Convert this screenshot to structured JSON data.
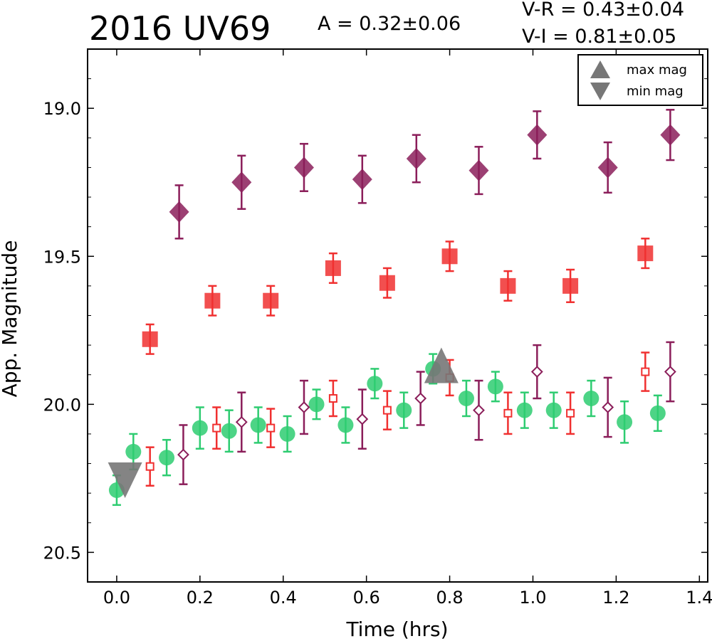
{
  "chart_data": {
    "type": "scatter",
    "title": "2016 UV69",
    "amplitude_text": "A  = 0.32±0.06",
    "color_text": [
      "V-R = 0.43±0.04",
      "V-I  = 0.81±0.05"
    ],
    "xlabel": "Time (hrs)",
    "ylabel": "App. Magnitude",
    "xlim": [
      -0.07,
      1.42
    ],
    "ylim": [
      20.6,
      18.8
    ],
    "y_inverted": true,
    "xticks": [
      "0.0",
      "0.2",
      "0.4",
      "0.6",
      "0.8",
      "1.0",
      "1.2",
      "1.4"
    ],
    "yticks": [
      "19.0",
      "19.5",
      "20.0",
      "20.5"
    ],
    "grid": false,
    "legend_position": "top-right",
    "legend": [
      "max mag",
      "min mag"
    ],
    "series": [
      {
        "role": "green filled circles",
        "color": "#2ecc71",
        "marker": "circle",
        "filled": true,
        "points": [
          {
            "x": 0.0,
            "y": 20.29,
            "err": 0.05
          },
          {
            "x": 0.04,
            "y": 20.16,
            "err": 0.06
          },
          {
            "x": 0.12,
            "y": 20.18,
            "err": 0.06
          },
          {
            "x": 0.2,
            "y": 20.08,
            "err": 0.07
          },
          {
            "x": 0.27,
            "y": 20.09,
            "err": 0.07
          },
          {
            "x": 0.34,
            "y": 20.07,
            "err": 0.06
          },
          {
            "x": 0.41,
            "y": 20.1,
            "err": 0.06
          },
          {
            "x": 0.48,
            "y": 20.0,
            "err": 0.05
          },
          {
            "x": 0.55,
            "y": 20.07,
            "err": 0.06
          },
          {
            "x": 0.62,
            "y": 19.93,
            "err": 0.05
          },
          {
            "x": 0.69,
            "y": 20.02,
            "err": 0.06
          },
          {
            "x": 0.76,
            "y": 19.88,
            "err": 0.05
          },
          {
            "x": 0.84,
            "y": 19.98,
            "err": 0.06
          },
          {
            "x": 0.91,
            "y": 19.94,
            "err": 0.05
          },
          {
            "x": 0.98,
            "y": 20.02,
            "err": 0.06
          },
          {
            "x": 1.05,
            "y": 20.02,
            "err": 0.06
          },
          {
            "x": 1.14,
            "y": 19.98,
            "err": 0.06
          },
          {
            "x": 1.22,
            "y": 20.06,
            "err": 0.07
          },
          {
            "x": 1.3,
            "y": 20.03,
            "err": 0.06
          }
        ]
      },
      {
        "role": "red filled squares",
        "color": "#f03030",
        "marker": "square",
        "filled": true,
        "points": [
          {
            "x": 0.08,
            "y": 19.78,
            "err": 0.05
          },
          {
            "x": 0.23,
            "y": 19.65,
            "err": 0.05
          },
          {
            "x": 0.37,
            "y": 19.65,
            "err": 0.05
          },
          {
            "x": 0.52,
            "y": 19.54,
            "err": 0.05
          },
          {
            "x": 0.65,
            "y": 19.59,
            "err": 0.05
          },
          {
            "x": 0.8,
            "y": 19.5,
            "err": 0.05
          },
          {
            "x": 0.94,
            "y": 19.6,
            "err": 0.05
          },
          {
            "x": 1.09,
            "y": 19.6,
            "err": 0.055
          },
          {
            "x": 1.27,
            "y": 19.49,
            "err": 0.05
          }
        ]
      },
      {
        "role": "purple filled diamonds",
        "color": "#8b1e5a",
        "marker": "diamond",
        "filled": true,
        "points": [
          {
            "x": 0.15,
            "y": 19.35,
            "err": 0.09
          },
          {
            "x": 0.3,
            "y": 19.25,
            "err": 0.09
          },
          {
            "x": 0.45,
            "y": 19.2,
            "err": 0.08
          },
          {
            "x": 0.59,
            "y": 19.24,
            "err": 0.08
          },
          {
            "x": 0.72,
            "y": 19.17,
            "err": 0.08
          },
          {
            "x": 0.87,
            "y": 19.21,
            "err": 0.08
          },
          {
            "x": 1.01,
            "y": 19.09,
            "err": 0.08
          },
          {
            "x": 1.18,
            "y": 19.2,
            "err": 0.085
          },
          {
            "x": 1.33,
            "y": 19.09,
            "err": 0.085
          }
        ]
      },
      {
        "role": "red open squares",
        "color": "#f03030",
        "marker": "square",
        "filled": false,
        "points": [
          {
            "x": 0.08,
            "y": 20.21,
            "err": 0.065
          },
          {
            "x": 0.24,
            "y": 20.08,
            "err": 0.07
          },
          {
            "x": 0.37,
            "y": 20.08,
            "err": 0.065
          },
          {
            "x": 0.52,
            "y": 19.98,
            "err": 0.06
          },
          {
            "x": 0.65,
            "y": 20.02,
            "err": 0.065
          },
          {
            "x": 0.8,
            "y": 19.91,
            "err": 0.06
          },
          {
            "x": 0.94,
            "y": 20.03,
            "err": 0.07
          },
          {
            "x": 1.09,
            "y": 20.03,
            "err": 0.07
          },
          {
            "x": 1.27,
            "y": 19.89,
            "err": 0.065
          }
        ]
      },
      {
        "role": "purple open diamonds",
        "color": "#8b1e5a",
        "marker": "diamond",
        "filled": false,
        "points": [
          {
            "x": 0.16,
            "y": 20.17,
            "err": 0.1
          },
          {
            "x": 0.3,
            "y": 20.06,
            "err": 0.1
          },
          {
            "x": 0.45,
            "y": 20.01,
            "err": 0.09
          },
          {
            "x": 0.59,
            "y": 20.05,
            "err": 0.1
          },
          {
            "x": 0.73,
            "y": 19.98,
            "err": 0.09
          },
          {
            "x": 0.87,
            "y": 20.02,
            "err": 0.1
          },
          {
            "x": 1.01,
            "y": 19.89,
            "err": 0.09
          },
          {
            "x": 1.18,
            "y": 20.01,
            "err": 0.1
          },
          {
            "x": 1.33,
            "y": 19.89,
            "err": 0.1
          }
        ]
      }
    ],
    "markers": [
      {
        "label": "max mag",
        "shape": "triangle-up",
        "x": 0.78,
        "y": 19.89,
        "color": "#777777"
      },
      {
        "label": "min mag",
        "shape": "triangle-down",
        "x": 0.02,
        "y": 20.23,
        "color": "#777777"
      }
    ]
  }
}
